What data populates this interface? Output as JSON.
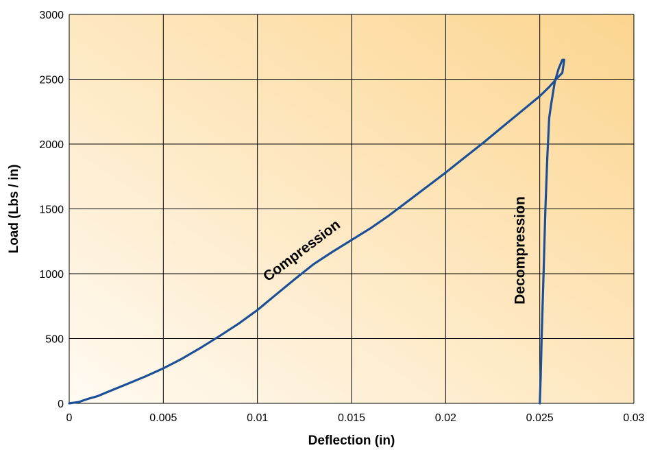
{
  "chart_data": {
    "type": "line",
    "title": "",
    "xlabel": "Deflection (in)",
    "ylabel": "Load (Lbs / in)",
    "xlim": [
      0,
      0.03
    ],
    "ylim": [
      0,
      3000
    ],
    "x_ticks": [
      "0",
      "0.005",
      "0.01",
      "0.015",
      "0.02",
      "0.025",
      "0.03"
    ],
    "y_ticks": [
      "0",
      "500",
      "1000",
      "1500",
      "2000",
      "2500",
      "3000"
    ],
    "grid": true,
    "series": [
      {
        "color": "#1c4f96",
        "points": [
          [
            0.0,
            0
          ],
          [
            0.0005,
            10
          ],
          [
            0.001,
            35
          ],
          [
            0.0015,
            55
          ],
          [
            0.002,
            85
          ],
          [
            0.003,
            145
          ],
          [
            0.004,
            205
          ],
          [
            0.005,
            270
          ],
          [
            0.006,
            345
          ],
          [
            0.007,
            430
          ],
          [
            0.008,
            520
          ],
          [
            0.009,
            615
          ],
          [
            0.01,
            720
          ],
          [
            0.011,
            840
          ],
          [
            0.012,
            960
          ],
          [
            0.013,
            1075
          ],
          [
            0.014,
            1170
          ],
          [
            0.015,
            1260
          ],
          [
            0.016,
            1350
          ],
          [
            0.017,
            1450
          ],
          [
            0.018,
            1560
          ],
          [
            0.019,
            1670
          ],
          [
            0.02,
            1780
          ],
          [
            0.021,
            1895
          ],
          [
            0.022,
            2010
          ],
          [
            0.023,
            2130
          ],
          [
            0.024,
            2250
          ],
          [
            0.025,
            2370
          ],
          [
            0.0255,
            2440
          ],
          [
            0.026,
            2520
          ],
          [
            0.0262,
            2550
          ],
          [
            0.0263,
            2650
          ],
          [
            0.0262,
            2650
          ],
          [
            0.026,
            2580
          ],
          [
            0.0258,
            2480
          ],
          [
            0.0256,
            2300
          ],
          [
            0.0255,
            2200
          ],
          [
            0.0254,
            1900
          ],
          [
            0.0253,
            1500
          ],
          [
            0.0252,
            1000
          ],
          [
            0.0251,
            500
          ],
          [
            0.02505,
            200
          ],
          [
            0.025,
            0
          ]
        ]
      }
    ],
    "annotations": [
      {
        "text": "Compression",
        "x": 0.0125,
        "y": 1150,
        "rotate": -37
      },
      {
        "text": "Decompression",
        "x": 0.0242,
        "y": 1180,
        "rotate": -90
      }
    ]
  },
  "style": {
    "background_light": "#fffaf2",
    "background_dark": "#fcd58f",
    "line_color": "#1c4f96"
  }
}
